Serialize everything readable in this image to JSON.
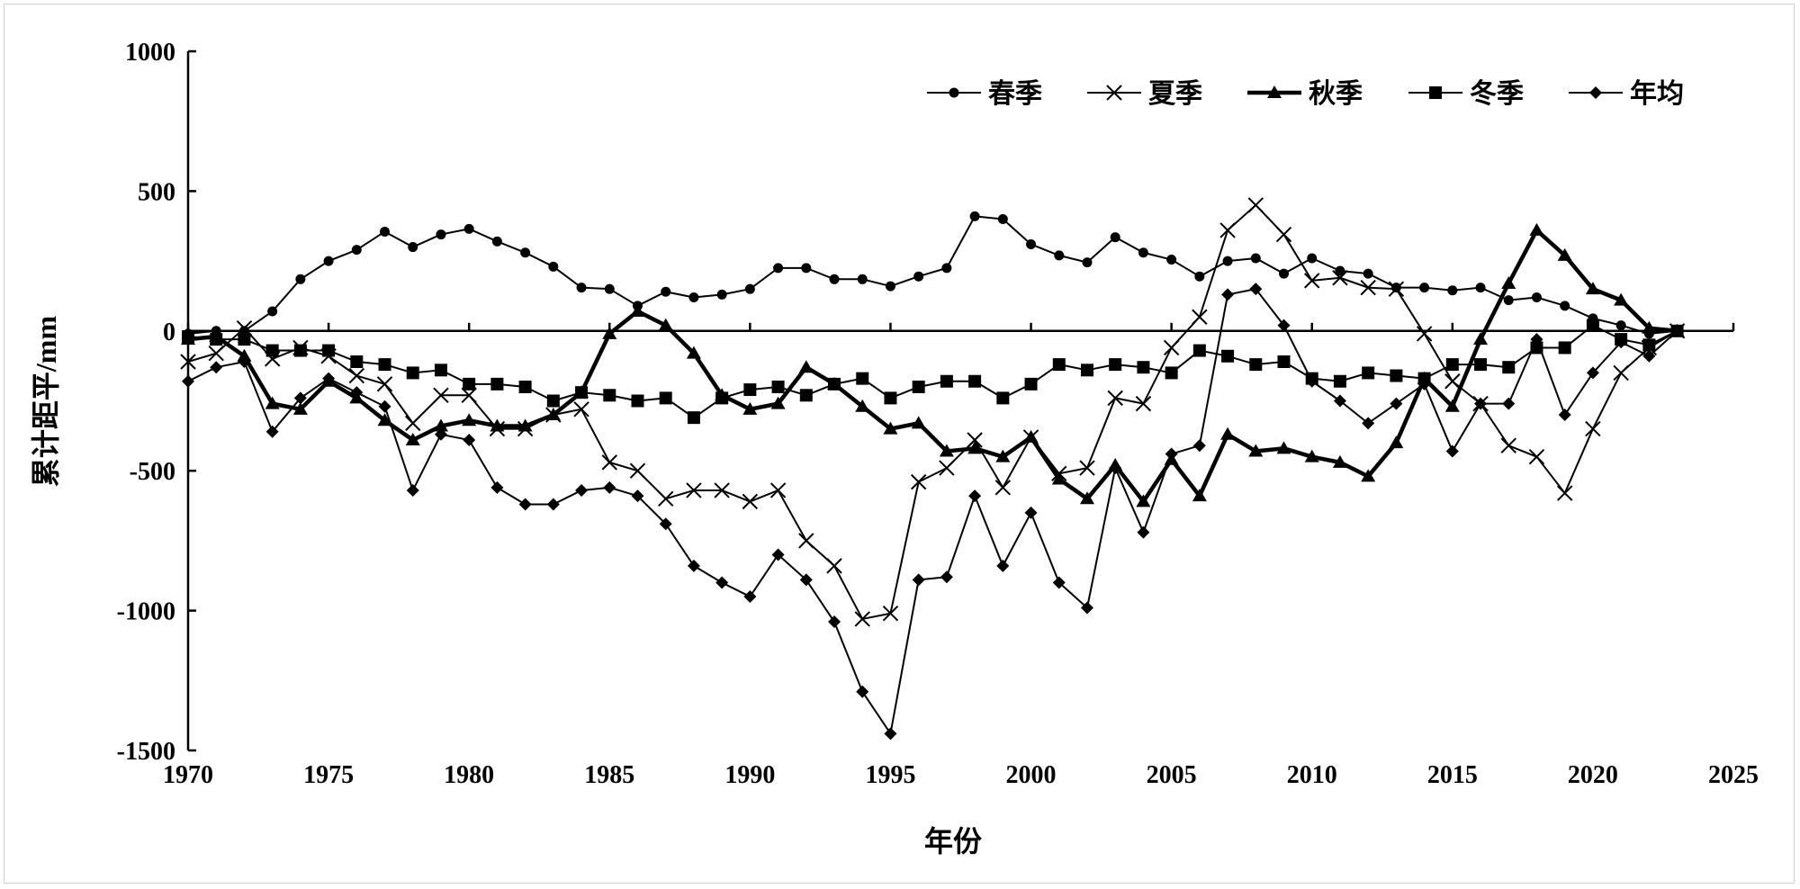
{
  "chart_data": {
    "type": "line",
    "xlabel": "年份",
    "ylabel": "累计距平/mm",
    "xlim": [
      1970,
      2025
    ],
    "ylim": [
      -1500,
      1000
    ],
    "xticks": [
      1970,
      1975,
      1980,
      1985,
      1990,
      1995,
      2000,
      2005,
      2010,
      2015,
      2020,
      2025
    ],
    "yticks": [
      -1500,
      -1000,
      -500,
      0,
      500,
      1000
    ],
    "grid": false,
    "legend_position": "top-right",
    "x": [
      1970,
      1971,
      1972,
      1973,
      1974,
      1975,
      1976,
      1977,
      1978,
      1979,
      1980,
      1981,
      1982,
      1983,
      1984,
      1985,
      1986,
      1987,
      1988,
      1989,
      1990,
      1991,
      1992,
      1993,
      1994,
      1995,
      1996,
      1997,
      1998,
      1999,
      2000,
      2001,
      2002,
      2003,
      2004,
      2005,
      2006,
      2007,
      2008,
      2009,
      2010,
      2011,
      2012,
      2013,
      2014,
      2015,
      2016,
      2017,
      2018,
      2019,
      2020,
      2021,
      2022,
      2023
    ],
    "series": [
      {
        "name": "春季",
        "marker": "circle",
        "line_width": "thin",
        "values": [
          -10,
          0,
          0,
          70,
          185,
          250,
          290,
          355,
          300,
          345,
          365,
          320,
          280,
          230,
          155,
          150,
          90,
          140,
          120,
          130,
          150,
          225,
          225,
          185,
          185,
          160,
          195,
          225,
          410,
          400,
          310,
          270,
          245,
          335,
          280,
          255,
          195,
          250,
          260,
          205,
          260,
          215,
          205,
          155,
          155,
          145,
          155,
          110,
          120,
          90,
          45,
          20,
          -10,
          0
        ]
      },
      {
        "name": "夏季",
        "marker": "x",
        "line_width": "thin",
        "values": [
          -110,
          -80,
          10,
          -100,
          -60,
          -90,
          -160,
          -190,
          -330,
          -230,
          -230,
          -350,
          -350,
          -300,
          -280,
          -470,
          -500,
          -600,
          -570,
          -570,
          -610,
          -570,
          -750,
          -840,
          -1030,
          -1010,
          -540,
          -490,
          -390,
          -560,
          -380,
          -510,
          -490,
          -240,
          -260,
          -60,
          50,
          360,
          450,
          345,
          180,
          190,
          155,
          150,
          -10,
          -180,
          -260,
          -410,
          -450,
          -580,
          -350,
          -150,
          -60,
          0
        ]
      },
      {
        "name": "秋季",
        "marker": "triangle",
        "line_width": "thick",
        "values": [
          -30,
          -20,
          -90,
          -260,
          -280,
          -180,
          -240,
          -320,
          -390,
          -340,
          -320,
          -340,
          -340,
          -300,
          -220,
          -10,
          70,
          20,
          -80,
          -230,
          -280,
          -260,
          -130,
          -190,
          -270,
          -350,
          -330,
          -430,
          -420,
          -450,
          -380,
          -530,
          -600,
          -480,
          -610,
          -460,
          -590,
          -370,
          -430,
          -420,
          -450,
          -470,
          -520,
          -400,
          -170,
          -270,
          -30,
          170,
          360,
          270,
          150,
          110,
          10,
          0
        ]
      },
      {
        "name": "冬季",
        "marker": "square",
        "line_width": "thin",
        "values": [
          -20,
          -30,
          -30,
          -70,
          -70,
          -70,
          -110,
          -120,
          -150,
          -140,
          -190,
          -190,
          -200,
          -250,
          -220,
          -230,
          -250,
          -240,
          -310,
          -240,
          -210,
          -200,
          -230,
          -190,
          -170,
          -240,
          -200,
          -180,
          -180,
          -240,
          -190,
          -120,
          -140,
          -120,
          -130,
          -150,
          -70,
          -90,
          -120,
          -110,
          -170,
          -180,
          -150,
          -160,
          -170,
          -120,
          -120,
          -130,
          -60,
          -60,
          20,
          -30,
          -50,
          0
        ]
      },
      {
        "name": "年均",
        "marker": "diamond",
        "line_width": "thin",
        "values": [
          -180,
          -130,
          -110,
          -360,
          -240,
          -170,
          -220,
          -270,
          -570,
          -370,
          -390,
          -560,
          -620,
          -620,
          -570,
          -560,
          -590,
          -690,
          -840,
          -900,
          -950,
          -800,
          -890,
          -1040,
          -1290,
          -1440,
          -890,
          -880,
          -590,
          -840,
          -650,
          -900,
          -990,
          -490,
          -720,
          -440,
          -410,
          130,
          150,
          20,
          -180,
          -250,
          -330,
          -260,
          -190,
          -430,
          -260,
          -260,
          -30,
          -300,
          -150,
          -40,
          -90,
          0
        ]
      }
    ],
    "colors": {
      "line": "#000000",
      "background": "#ffffff"
    }
  }
}
